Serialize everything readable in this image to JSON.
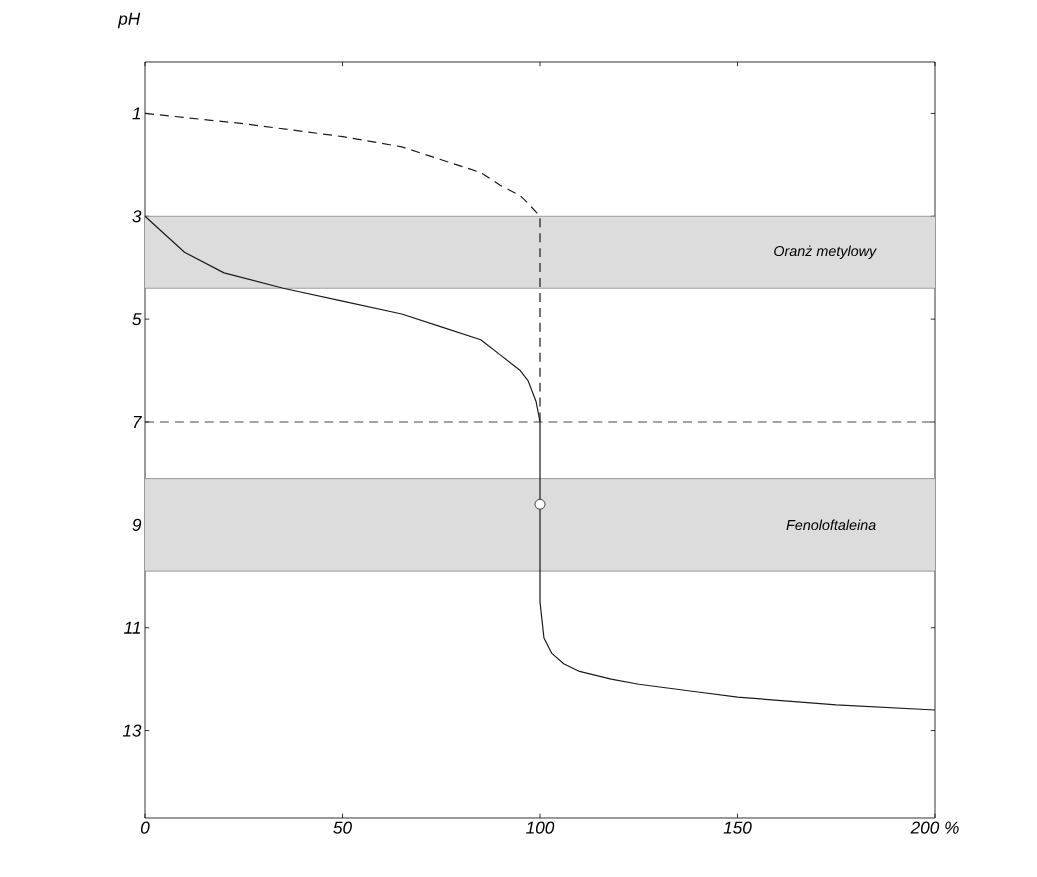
{
  "chart_data": {
    "type": "line",
    "ylabel": "pH",
    "x": [
      0,
      10,
      20,
      35,
      50,
      65,
      75,
      85,
      90,
      95,
      97,
      99,
      100,
      100,
      101,
      103,
      106,
      110,
      118,
      125,
      140,
      150,
      175,
      200
    ],
    "series": [
      {
        "color": "#1a1a1a",
        "line_style": "solid",
        "values": [
          3,
          3.7,
          4.1,
          4.4,
          4.65,
          4.9,
          5.15,
          5.4,
          5.7,
          6.0,
          6.2,
          6.6,
          7,
          10.5,
          11.2,
          11.5,
          11.7,
          11.85,
          12.0,
          12.1,
          12.25,
          12.35,
          12.5,
          12.6
        ]
      },
      {
        "type": "line",
        "color": "#1a1a1a",
        "line_style": "dashed",
        "x": [
          0,
          25,
          50,
          65,
          75,
          85,
          90,
          95,
          97,
          100,
          100
        ],
        "values": [
          1,
          1.2,
          1.45,
          1.65,
          1.9,
          2.15,
          2.4,
          2.6,
          2.75,
          3,
          7
        ]
      },
      {
        "type": "scatter",
        "color": "#1a1a1a",
        "marker": "circle",
        "x": [
          100
        ],
        "values": [
          8.6
        ]
      }
    ],
    "xlim": [
      0,
      200
    ],
    "ylim": [
      14.7,
      0
    ],
    "xticks": [
      0,
      50,
      100,
      150,
      {
        "value": 200,
        "label": "200 %"
      }
    ],
    "yticks": [
      1,
      3,
      5,
      7,
      9,
      11,
      13
    ],
    "ref_lines": [
      {
        "axis": "y",
        "value": 7,
        "line_style": "dashed",
        "color": "#1a1a1a"
      }
    ],
    "bands": [
      {
        "axis": "y",
        "from": 3,
        "to": 4.4,
        "label": "Oranż metylowy",
        "color": "#dcdcdc"
      },
      {
        "axis": "y",
        "from": 8.1,
        "to": 9.9,
        "label": "Fenoloftaleina",
        "color": "#dcdcdc"
      }
    ],
    "grid": false
  }
}
